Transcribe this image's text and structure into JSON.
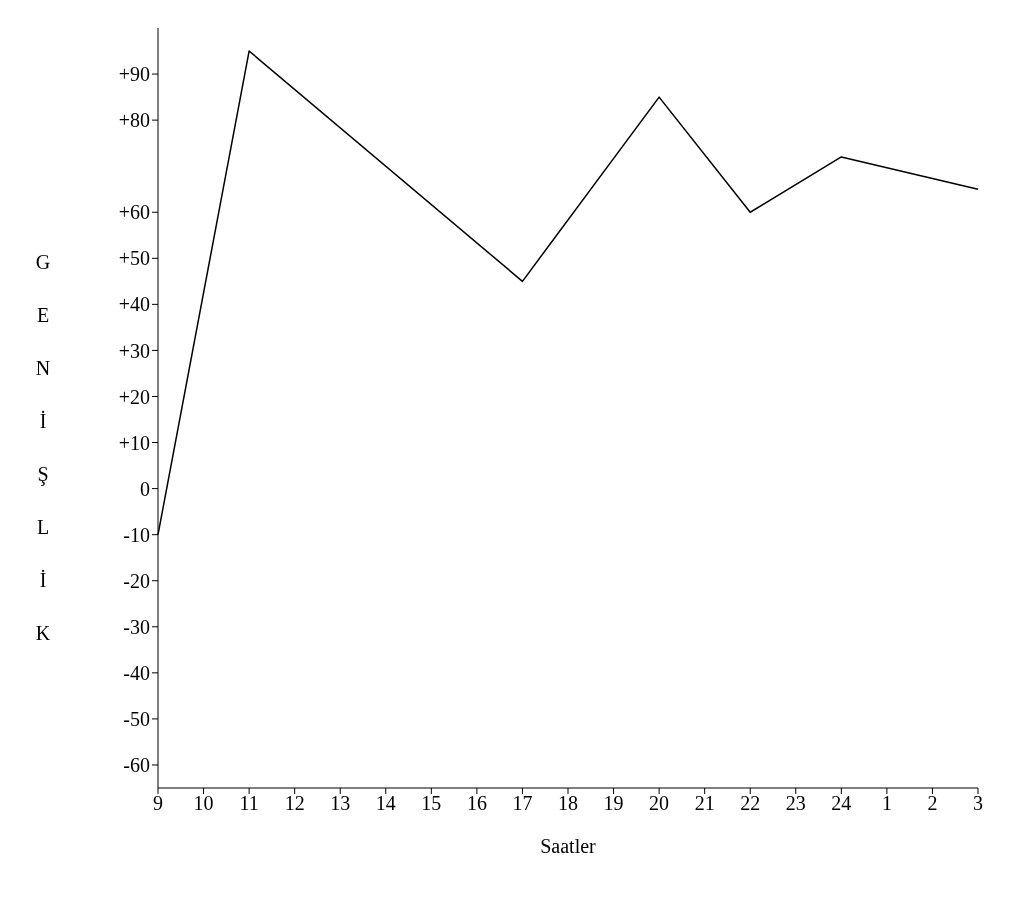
{
  "chart_data": {
    "type": "line",
    "xlabel": "Saatler",
    "ylabel": "GENİŞLİK",
    "categories": [
      "9",
      "10",
      "11",
      "12",
      "13",
      "14",
      "15",
      "16",
      "17",
      "18",
      "19",
      "20",
      "21",
      "22",
      "23",
      "24",
      "1",
      "2",
      "3"
    ],
    "series": [
      {
        "color": "#000000",
        "values": [
          -10,
          null,
          95,
          null,
          null,
          null,
          null,
          null,
          45,
          null,
          null,
          85,
          null,
          60,
          null,
          72,
          null,
          null,
          65
        ]
      }
    ],
    "ylim": [
      -65,
      100
    ],
    "yticks": [
      {
        "value": 90,
        "label": "+90"
      },
      {
        "value": 80,
        "label": "+80"
      },
      {
        "value": 60,
        "label": "+60"
      },
      {
        "value": 50,
        "label": "+50"
      },
      {
        "value": 40,
        "label": "+40"
      },
      {
        "value": 30,
        "label": "+30"
      },
      {
        "value": 20,
        "label": "+20"
      },
      {
        "value": 10,
        "label": "+10"
      },
      0,
      -10,
      -20,
      -30,
      -40,
      -50,
      -60
    ],
    "grid": false,
    "marker": "none",
    "line_style": "solid"
  }
}
